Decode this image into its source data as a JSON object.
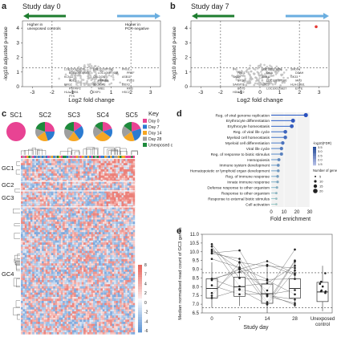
{
  "panel_a": {
    "label": "a",
    "title": "Study day 0",
    "arrow_left_text_1": "Higher in",
    "arrow_left_text_2": "unexposed controls",
    "arrow_right_text_1": "Higher in",
    "arrow_right_text_2": "PCR-negative",
    "xlabel": "Log2 fold change",
    "ylabel": "-log10 adjusted p-value",
    "x_ticks": [
      "-3",
      "-2",
      "-1",
      "0",
      "1",
      "2",
      "3"
    ],
    "y_ticks": [
      "0",
      "1",
      "2",
      "3",
      "4"
    ],
    "gene_labels": [
      "LOC100129827",
      "LOC101927386",
      "PRG1",
      "LOC105379987",
      "LOC105377658",
      "PREF",
      "KCNJ2",
      "CALDOS",
      "ASB11",
      "ADE3",
      "HMMB8",
      "PSD3",
      "ERG2",
      "SLC45A3",
      "DDX3",
      "PSTPIP2",
      "MIB1",
      "RM3",
      "HLA-DRB1",
      "DSP1",
      "HSC2",
      "PTS"
    ]
  },
  "panel_b": {
    "label": "b",
    "title": "Study day 7",
    "xlabel": "Log2 fold change",
    "ylabel": "-log10 adjusted p-value",
    "x_ticks": [
      "-3",
      "-2",
      "-1",
      "0",
      "1",
      "2",
      "3"
    ],
    "y_ticks": [
      "0",
      "1",
      "2",
      "3",
      "4"
    ],
    "gene_labels": [
      "IFI",
      "LOC105377658",
      "SMD04",
      "PRG1",
      "DMA",
      "DDAH",
      "SKAP",
      "ASB11",
      "GK33",
      "STOP",
      "LOC101927386",
      "IAH3",
      "SAKMT1",
      "HSC2",
      "HLA-DRB1",
      "BOT5",
      "LOC100129827",
      "EXTE",
      "HDMAT2"
    ]
  },
  "panel_c": {
    "label": "c",
    "sc_labels": [
      "SC1",
      "SC2",
      "SC3",
      "SC4",
      "SC5"
    ],
    "key_title": "Key",
    "key_items": [
      {
        "label": "Day 0",
        "color": "#e84393"
      },
      {
        "label": "Day 7",
        "color": "#2b7bd1"
      },
      {
        "label": "Day 14",
        "color": "#f5a623"
      },
      {
        "label": "Day 28",
        "color": "#9e9e9e"
      },
      {
        "label": "Unexposed control",
        "color": "#1e8a3c"
      }
    ],
    "gc_labels": [
      "GC1",
      "GC2",
      "GC3",
      "GC4"
    ],
    "colorbar_ticks": [
      "8",
      "7",
      "4",
      "2",
      "0",
      "-2",
      "-4",
      "-6"
    ],
    "pies": [
      [
        1.0,
        0,
        0,
        0,
        0
      ],
      [
        0.25,
        0.2,
        0.2,
        0.15,
        0.2
      ],
      [
        0.15,
        0.25,
        0.2,
        0.2,
        0.2
      ],
      [
        0.2,
        0.15,
        0.3,
        0.2,
        0.15
      ],
      [
        0.2,
        0.25,
        0.2,
        0.2,
        0.15
      ]
    ]
  },
  "panel_d": {
    "label": "d",
    "xlabel": "Fold enrichment",
    "x_ticks": [
      "0",
      "10",
      "20",
      "30"
    ],
    "terms": [
      "Reg. of viral genome replication",
      "Erythrocyte differentiation",
      "Erythrocyte homeostasis",
      "Reg. of viral life cycle",
      "Myeloid cell homeostasis",
      "Myeloid cell differentiation",
      "Viral life cycle",
      "Reg. of response to biotic stimulus",
      "Hemopoiesis",
      "Immune system development",
      "Hematopoietic or lymphoid organ development",
      "Reg. of immune response",
      "Innate immune response",
      "Defense response to other organism",
      "Response to other organism",
      "Response to external biotic stimulus",
      "Cell activation"
    ],
    "values": [
      27,
      17,
      16,
      11,
      11,
      9,
      8,
      8,
      6,
      5.5,
      5.5,
      5,
      5,
      4.5,
      4,
      4,
      4
    ],
    "legend_fdr_title": "-log10(FDR)",
    "legend_fdr_ticks": [
      "3.5",
      "3.0",
      "2.5",
      "2.0",
      "1.5"
    ],
    "legend_genes_title": "Number of genes",
    "legend_genes_ticks": [
      "5",
      "10",
      "15",
      "20"
    ]
  },
  "panel_e": {
    "label": "e",
    "xlabel": "Study day",
    "ylabel": "Median normalised read count of GC3 genes",
    "x_ticks": [
      "0",
      "7",
      "14",
      "28",
      "Unexposed control"
    ],
    "y_ticks": [
      "6.5",
      "7.0",
      "7.5",
      "8.0",
      "8.5",
      "9.0",
      "9.5",
      "10.0",
      "10.5",
      "11.0"
    ]
  },
  "chart_data": [
    {
      "type": "scatter",
      "title": "Study day 0",
      "xlabel": "Log2 fold change",
      "ylabel": "-log10 adjusted p-value",
      "xlim": [
        -3.5,
        3.5
      ],
      "ylim": [
        0,
        4.5
      ],
      "thresholds": {
        "x": [
          -2,
          2
        ],
        "y": 1.3
      }
    },
    {
      "type": "scatter",
      "title": "Study day 7",
      "xlabel": "Log2 fold change",
      "ylabel": "-log10 adjusted p-value",
      "xlim": [
        -3.5,
        3.5
      ],
      "ylim": [
        0,
        4.5
      ],
      "thresholds": {
        "x": [
          -2,
          2
        ],
        "y": 1.3
      }
    },
    {
      "type": "heatmap",
      "row_groups": [
        "GC1",
        "GC2",
        "GC3",
        "GC4"
      ],
      "col_groups": [
        "SC1",
        "SC2",
        "SC3",
        "SC4",
        "SC5"
      ],
      "value_range": [
        -6,
        8
      ]
    },
    {
      "type": "bar",
      "xlabel": "Fold enrichment",
      "xlim": [
        0,
        30
      ]
    },
    {
      "type": "scatter",
      "xlabel": "Study day",
      "ylabel": "Median normalised read count of GC3 genes",
      "ylim": [
        6.5,
        11.0
      ],
      "categories": [
        "0",
        "7",
        "14",
        "28",
        "Unexposed control"
      ],
      "medians": [
        7.9,
        8.0,
        7.6,
        7.9,
        7.7
      ],
      "reference_lines": [
        8.8,
        6.8
      ]
    }
  ]
}
